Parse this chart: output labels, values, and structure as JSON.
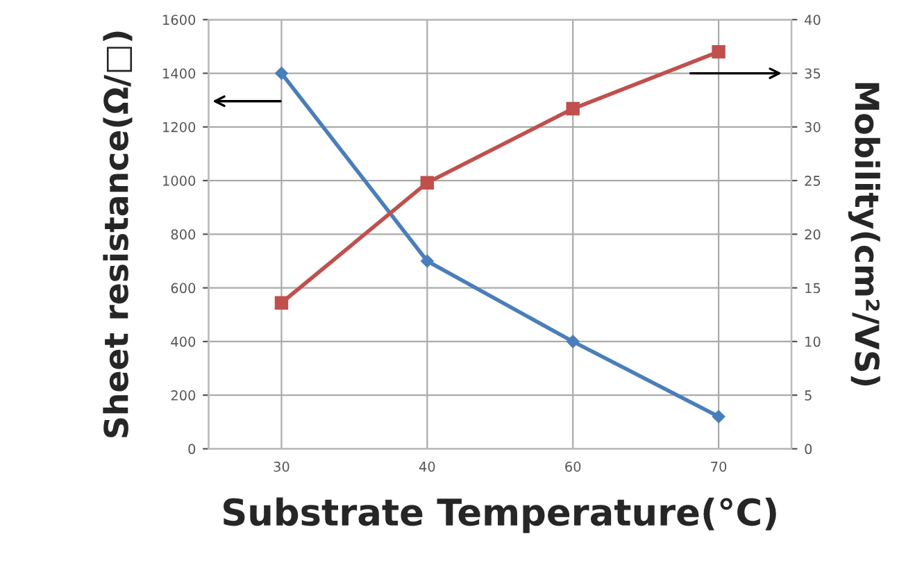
{
  "chart_data": {
    "type": "line",
    "categories": [
      "30",
      "40",
      "60",
      "70"
    ],
    "xlabel": "Substrate Temperature(°C)",
    "ylabel": "Sheet resistance(Ω/□)",
    "y2label": "Mobility(cm²/VS)",
    "series": [
      {
        "color": "#4a7ebb",
        "marker": "diamond",
        "values": [
          1400,
          700,
          400,
          120
        ]
      },
      {
        "color": "#c0504d",
        "marker": "square",
        "axis": "y2",
        "values": [
          13.6,
          24.8,
          31.7,
          37
        ]
      }
    ],
    "ylim": [
      0,
      1600
    ],
    "yticks": [
      0,
      200,
      400,
      600,
      800,
      1000,
      1200,
      1400,
      1600
    ],
    "y2lim": [
      0,
      40
    ],
    "y2ticks": [
      0,
      5,
      10,
      15,
      20,
      25,
      30,
      35,
      40
    ],
    "grid": true,
    "line_style": "solid"
  }
}
